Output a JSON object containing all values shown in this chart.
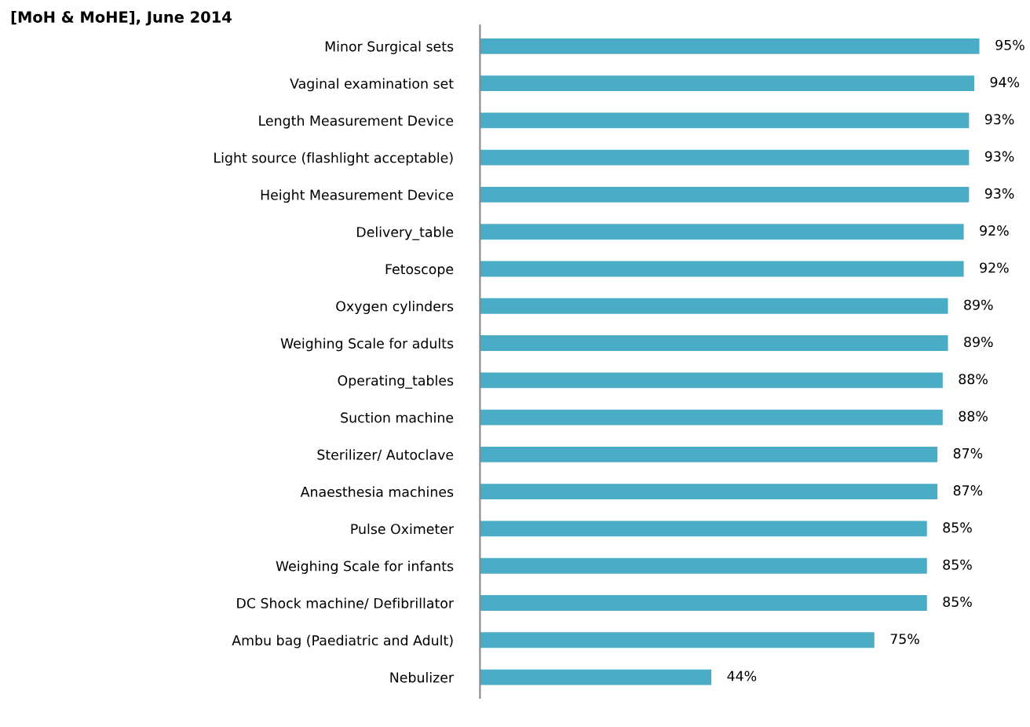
{
  "chart_data": {
    "type": "bar",
    "orientation": "horizontal",
    "title": "[MoH & MoHE], June 2014",
    "categories": [
      "Minor Surgical sets",
      "Vaginal examination set",
      "Length Measurement Device",
      "Light source (flashlight acceptable)",
      "Height Measurement Device",
      "Delivery_table",
      "Fetoscope",
      "Oxygen cylinders",
      "Weighing Scale for adults",
      "Operating_tables",
      "Suction machine",
      "Sterilizer/ Autoclave",
      "Anaesthesia machines",
      "Pulse Oximeter",
      "Weighing Scale for infants",
      "DC Shock machine/ Defibrillator",
      "Ambu bag (Paediatric and Adult)",
      "Nebulizer"
    ],
    "values": [
      95,
      94,
      93,
      93,
      93,
      92,
      92,
      89,
      89,
      88,
      88,
      87,
      87,
      85,
      85,
      85,
      75,
      44
    ],
    "value_labels": [
      "95%",
      "94%",
      "93%",
      "93%",
      "93%",
      "92%",
      "92%",
      "89%",
      "89%",
      "88%",
      "88%",
      "87%",
      "87%",
      "85%",
      "85%",
      "85%",
      "75%",
      "44%"
    ],
    "color": "#4bacc6",
    "grid": false,
    "legend": false
  }
}
